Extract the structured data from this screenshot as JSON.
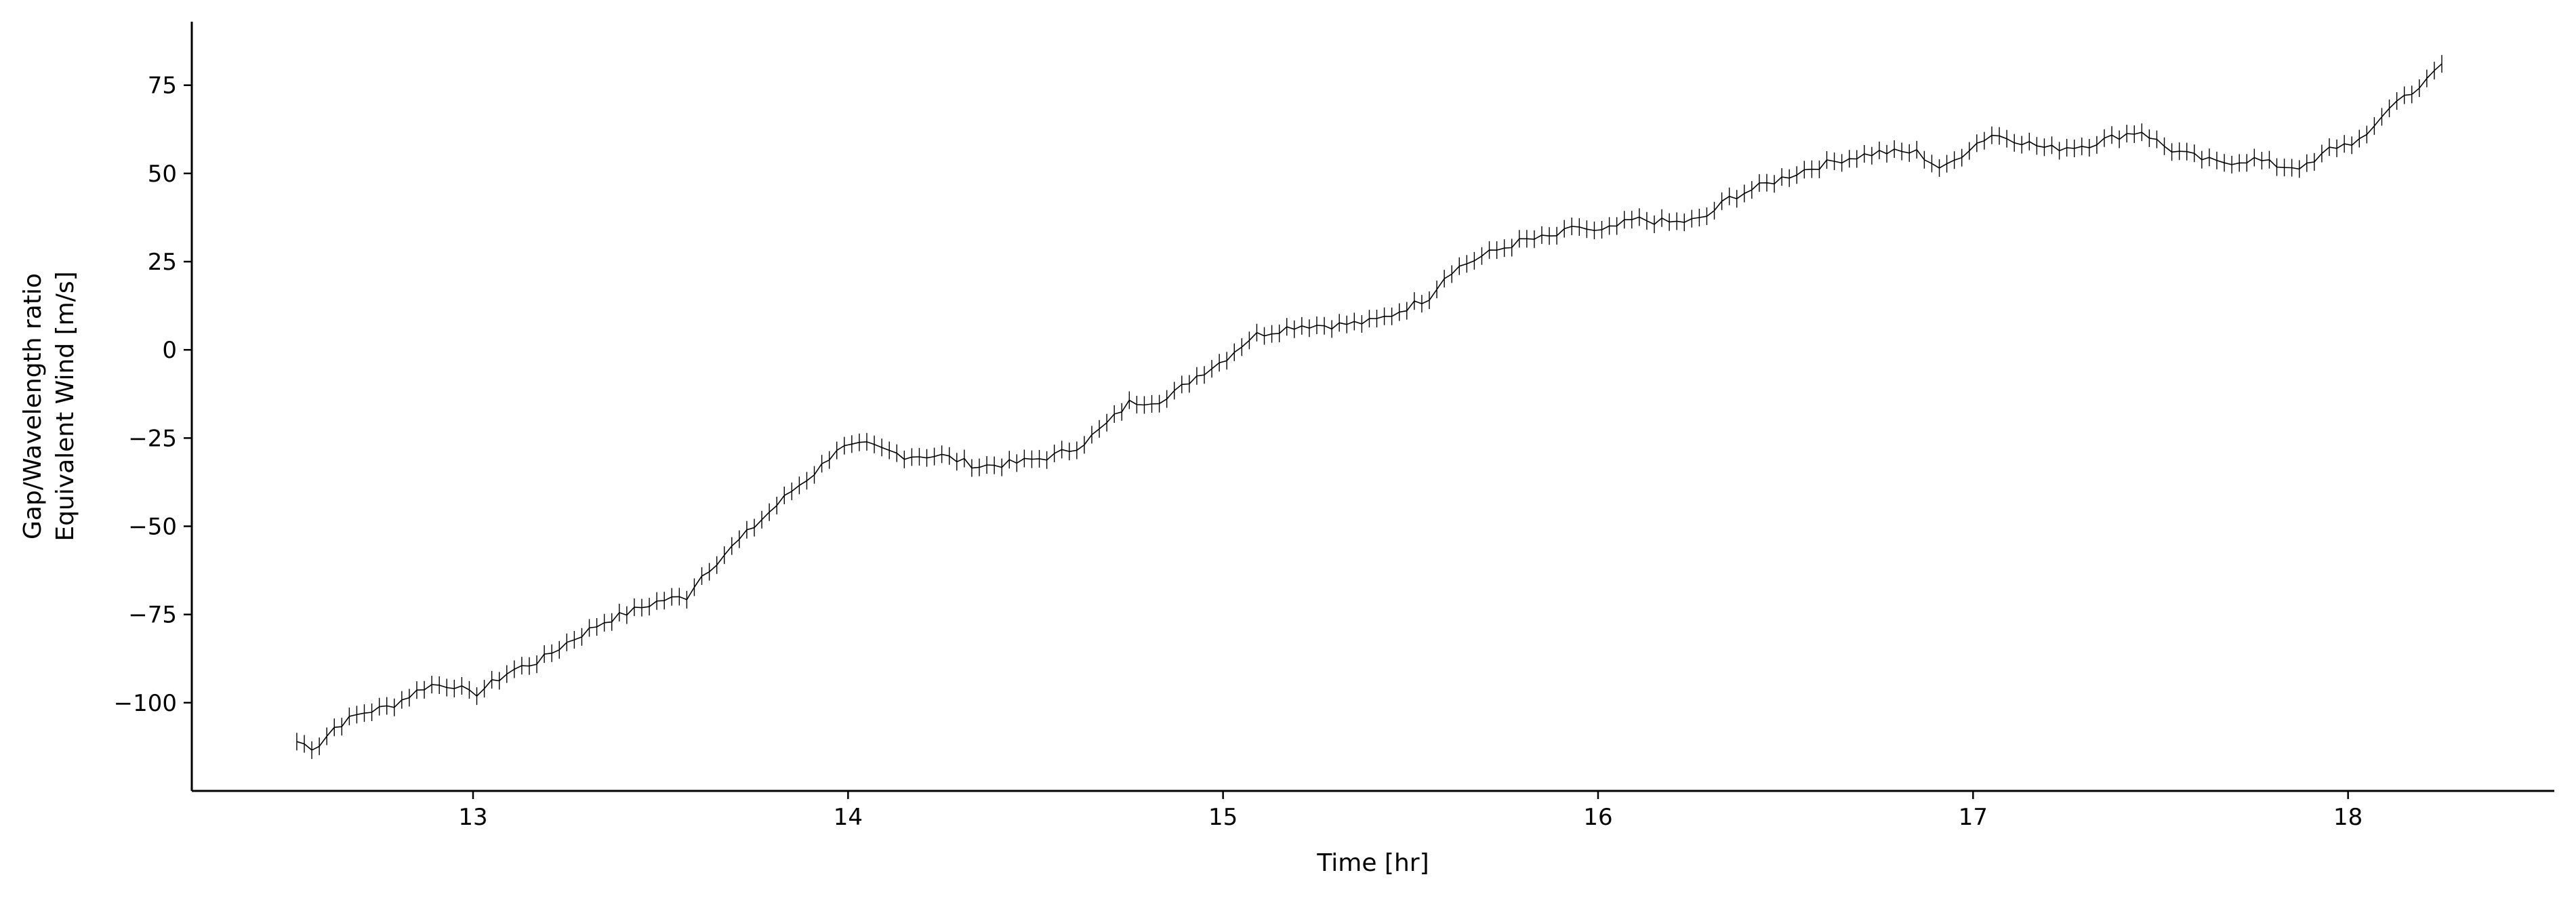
{
  "chart_data": {
    "type": "line",
    "title": "",
    "xlabel": "Time [hr]",
    "ylabel_lines": [
      "Gap/Wavelength ratio",
      "Equivalent Wind [m/s]"
    ],
    "xlim": [
      12.25,
      18.55
    ],
    "ylim": [
      -125,
      93
    ],
    "xticks": [
      13,
      14,
      15,
      16,
      17,
      18
    ],
    "yticks": [
      75,
      50,
      25,
      0,
      -25,
      -50,
      -75,
      -100
    ],
    "ytick_labels": [
      "75",
      "50",
      "25",
      "0",
      "−25",
      "−50",
      "−75",
      "−100"
    ],
    "grid": false,
    "error_bar_halfwidth": 2.5,
    "anchors": [
      [
        12.53,
        -111
      ],
      [
        12.58,
        -113
      ],
      [
        12.63,
        -107
      ],
      [
        12.7,
        -103
      ],
      [
        12.78,
        -101
      ],
      [
        12.88,
        -95
      ],
      [
        12.95,
        -95
      ],
      [
        13.0,
        -98
      ],
      [
        13.1,
        -91
      ],
      [
        13.18,
        -88
      ],
      [
        13.25,
        -83
      ],
      [
        13.35,
        -77
      ],
      [
        13.45,
        -73
      ],
      [
        13.5,
        -71
      ],
      [
        13.57,
        -70
      ],
      [
        13.6,
        -65
      ],
      [
        13.7,
        -55
      ],
      [
        13.8,
        -45
      ],
      [
        13.85,
        -40
      ],
      [
        13.92,
        -34
      ],
      [
        13.97,
        -28
      ],
      [
        14.05,
        -27
      ],
      [
        14.15,
        -30
      ],
      [
        14.25,
        -30
      ],
      [
        14.35,
        -33
      ],
      [
        14.45,
        -32
      ],
      [
        14.55,
        -30
      ],
      [
        14.62,
        -27
      ],
      [
        14.68,
        -22
      ],
      [
        14.75,
        -15
      ],
      [
        14.85,
        -14
      ],
      [
        14.92,
        -8
      ],
      [
        15.0,
        -3
      ],
      [
        15.08,
        4
      ],
      [
        15.2,
        7
      ],
      [
        15.3,
        7
      ],
      [
        15.4,
        8
      ],
      [
        15.45,
        10
      ],
      [
        15.55,
        15
      ],
      [
        15.6,
        22
      ],
      [
        15.7,
        27
      ],
      [
        15.8,
        31
      ],
      [
        15.88,
        32
      ],
      [
        15.95,
        35
      ],
      [
        16.0,
        33
      ],
      [
        16.1,
        37
      ],
      [
        16.2,
        36
      ],
      [
        16.28,
        37
      ],
      [
        16.35,
        43
      ],
      [
        16.45,
        47
      ],
      [
        16.55,
        51
      ],
      [
        16.65,
        54
      ],
      [
        16.75,
        56
      ],
      [
        16.85,
        56
      ],
      [
        16.92,
        51
      ],
      [
        17.0,
        58
      ],
      [
        17.05,
        61
      ],
      [
        17.1,
        60
      ],
      [
        17.2,
        57
      ],
      [
        17.3,
        58
      ],
      [
        17.4,
        61
      ],
      [
        17.45,
        62
      ],
      [
        17.52,
        57
      ],
      [
        17.58,
        55
      ],
      [
        17.65,
        53
      ],
      [
        17.75,
        54
      ],
      [
        17.82,
        52
      ],
      [
        17.9,
        52
      ],
      [
        17.95,
        57
      ],
      [
        18.05,
        60
      ],
      [
        18.1,
        68
      ],
      [
        18.15,
        72
      ],
      [
        18.2,
        75
      ],
      [
        18.25,
        81
      ]
    ]
  }
}
